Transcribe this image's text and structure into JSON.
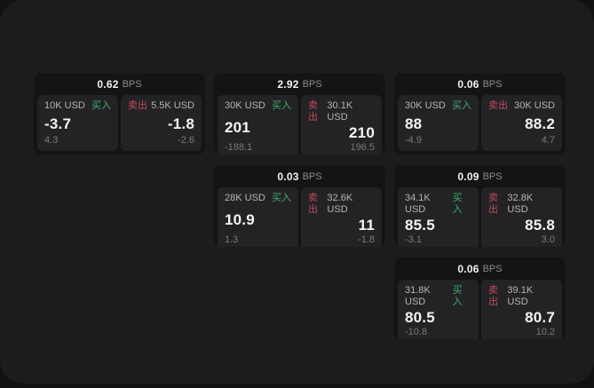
{
  "labels": {
    "bps_unit": "BPS",
    "buy": "买入",
    "sell": "卖出"
  },
  "colors": {
    "background": "#111113",
    "panel": "#1c1c1e",
    "card": "#141416",
    "subcard": "#232326",
    "buy_green": "#3fae6b",
    "sell_red": "#c04a58",
    "price_white": "#f5f5f5",
    "muted_gray": "#7a7a7a"
  },
  "cards": [
    {
      "bps": "0.62",
      "col": 1,
      "row": 1,
      "buy": {
        "amount": "10K USD",
        "price": "-3.7",
        "delta": "4.3"
      },
      "sell": {
        "amount": "5.5K USD",
        "price": "-1.8",
        "delta": "-2.6"
      }
    },
    {
      "bps": "2.92",
      "col": 2,
      "row": 1,
      "buy": {
        "amount": "30K USD",
        "price": "201",
        "delta": "-188.1"
      },
      "sell": {
        "amount": "30.1K USD",
        "price": "210",
        "delta": "196.5"
      }
    },
    {
      "bps": "0.06",
      "col": 3,
      "row": 1,
      "buy": {
        "amount": "30K USD",
        "price": "88",
        "delta": "-4.9"
      },
      "sell": {
        "amount": "30K USD",
        "price": "88.2",
        "delta": "4.7"
      }
    },
    {
      "bps": "0.03",
      "col": 2,
      "row": 2,
      "buy": {
        "amount": "28K USD",
        "price": "10.9",
        "delta": "1.3"
      },
      "sell": {
        "amount": "32.6K USD",
        "price": "11",
        "delta": "-1.8"
      }
    },
    {
      "bps": "0.09",
      "col": 3,
      "row": 2,
      "buy": {
        "amount": "34.1K USD",
        "price": "85.5",
        "delta": "-3.1"
      },
      "sell": {
        "amount": "32.8K USD",
        "price": "85.8",
        "delta": "3.0"
      }
    },
    {
      "bps": "0.06",
      "col": 3,
      "row": 3,
      "buy": {
        "amount": "31.8K USD",
        "price": "80.5",
        "delta": "-10.8"
      },
      "sell": {
        "amount": "39.1K USD",
        "price": "80.7",
        "delta": "10.2"
      }
    }
  ]
}
